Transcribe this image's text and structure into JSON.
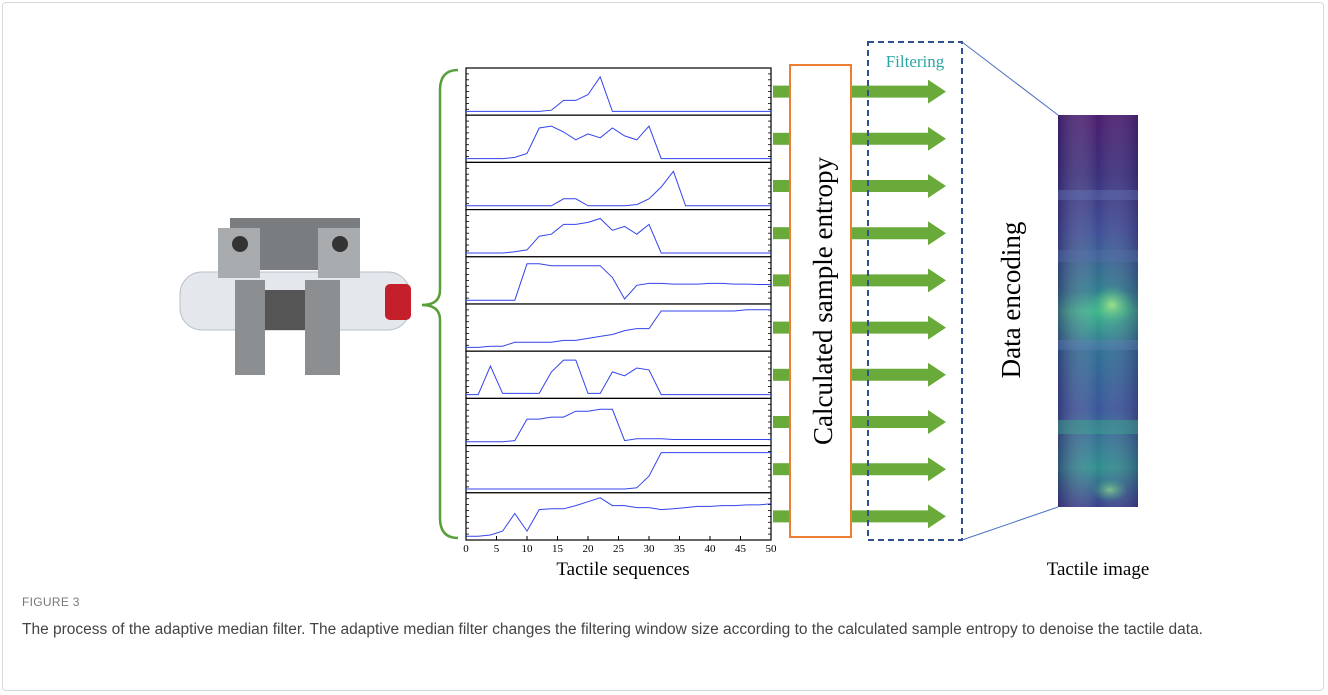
{
  "figure": {
    "filter_label": "Filtering",
    "entropy_label": "Calculated sample entropy",
    "encoding_label": "Data encoding",
    "image_title": "Tactile image",
    "sequences": {
      "x_title": "Tactile sequences",
      "xlim": [
        0,
        50
      ],
      "ylim": [
        0,
        1
      ],
      "xticks": [
        0,
        5,
        10,
        15,
        20,
        25,
        30,
        35,
        40,
        45,
        50
      ],
      "x": [
        0,
        2,
        4,
        6,
        8,
        10,
        12,
        14,
        16,
        18,
        20,
        22,
        24,
        26,
        28,
        30,
        32,
        34,
        36,
        38,
        40,
        42,
        44,
        46,
        48,
        50
      ],
      "color": "#3344ee",
      "series": [
        {
          "values": [
            0.02,
            0.02,
            0.02,
            0.02,
            0.02,
            0.02,
            0.02,
            0.05,
            0.3,
            0.3,
            0.45,
            0.9,
            0.02,
            0.02,
            0.02,
            0.02,
            0.02,
            0.02,
            0.02,
            0.02,
            0.02,
            0.02,
            0.02,
            0.02,
            0.02,
            0.02
          ]
        },
        {
          "values": [
            0.02,
            0.02,
            0.02,
            0.02,
            0.05,
            0.15,
            0.8,
            0.85,
            0.7,
            0.5,
            0.65,
            0.55,
            0.8,
            0.6,
            0.5,
            0.85,
            0.02,
            0.02,
            0.02,
            0.02,
            0.02,
            0.02,
            0.02,
            0.02,
            0.02,
            0.02
          ]
        },
        {
          "values": [
            0.02,
            0.02,
            0.02,
            0.02,
            0.02,
            0.02,
            0.02,
            0.02,
            0.2,
            0.2,
            0.02,
            0.02,
            0.02,
            0.02,
            0.05,
            0.2,
            0.5,
            0.9,
            0.02,
            0.02,
            0.02,
            0.02,
            0.02,
            0.02,
            0.02,
            0.02
          ]
        },
        {
          "values": [
            0.02,
            0.02,
            0.02,
            0.02,
            0.05,
            0.1,
            0.45,
            0.5,
            0.75,
            0.75,
            0.8,
            0.9,
            0.6,
            0.7,
            0.5,
            0.75,
            0.02,
            0.02,
            0.02,
            0.02,
            0.02,
            0.02,
            0.02,
            0.02,
            0.02,
            0.02
          ]
        },
        {
          "values": [
            0.02,
            0.02,
            0.02,
            0.02,
            0.02,
            0.95,
            0.95,
            0.9,
            0.9,
            0.9,
            0.9,
            0.9,
            0.6,
            0.05,
            0.4,
            0.45,
            0.45,
            0.43,
            0.43,
            0.43,
            0.45,
            0.45,
            0.43,
            0.43,
            0.42,
            0.42
          ]
        },
        {
          "values": [
            0.02,
            0.02,
            0.05,
            0.05,
            0.15,
            0.15,
            0.15,
            0.15,
            0.2,
            0.2,
            0.25,
            0.3,
            0.35,
            0.45,
            0.5,
            0.5,
            0.95,
            0.95,
            0.95,
            0.95,
            0.95,
            0.95,
            0.95,
            0.98,
            0.98,
            0.98
          ]
        },
        {
          "values": [
            0.02,
            0.02,
            0.75,
            0.05,
            0.05,
            0.05,
            0.05,
            0.6,
            0.9,
            0.9,
            0.05,
            0.05,
            0.6,
            0.5,
            0.7,
            0.65,
            0.02,
            0.02,
            0.02,
            0.02,
            0.02,
            0.02,
            0.02,
            0.02,
            0.02,
            0.02
          ]
        },
        {
          "values": [
            0.02,
            0.02,
            0.02,
            0.02,
            0.05,
            0.6,
            0.6,
            0.65,
            0.65,
            0.8,
            0.8,
            0.85,
            0.85,
            0.05,
            0.1,
            0.1,
            0.1,
            0.08,
            0.08,
            0.08,
            0.08,
            0.08,
            0.08,
            0.08,
            0.08,
            0.08
          ]
        },
        {
          "values": [
            0.02,
            0.02,
            0.02,
            0.02,
            0.02,
            0.02,
            0.02,
            0.02,
            0.02,
            0.02,
            0.02,
            0.02,
            0.02,
            0.02,
            0.05,
            0.35,
            0.95,
            0.95,
            0.95,
            0.95,
            0.95,
            0.95,
            0.95,
            0.95,
            0.95,
            0.95
          ]
        },
        {
          "values": [
            0.02,
            0.02,
            0.05,
            0.15,
            0.6,
            0.15,
            0.7,
            0.72,
            0.72,
            0.8,
            0.9,
            1.0,
            0.8,
            0.8,
            0.75,
            0.75,
            0.7,
            0.72,
            0.75,
            0.78,
            0.78,
            0.8,
            0.8,
            0.82,
            0.82,
            0.85
          ]
        }
      ]
    }
  },
  "caption": {
    "label": "FIGURE 3",
    "text": "The process of the adaptive median filter. The adaptive median filter changes the filtering window size according to the calculated sample entropy to denoise the tactile data."
  }
}
